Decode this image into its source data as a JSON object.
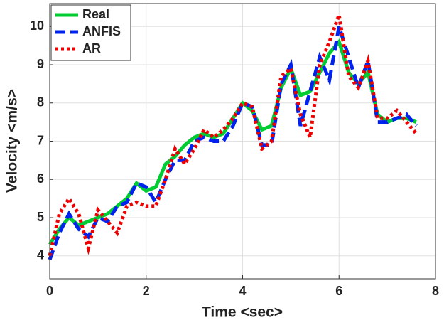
{
  "chart_data": {
    "type": "line",
    "x_label": "Time <sec>",
    "y_label": "Velocity <m/s>",
    "x": [
      0,
      0.2,
      0.4,
      0.6,
      0.8,
      1.0,
      1.2,
      1.4,
      1.6,
      1.8,
      2.0,
      2.2,
      2.4,
      2.6,
      2.8,
      3.0,
      3.2,
      3.4,
      3.6,
      3.8,
      4.0,
      4.2,
      4.4,
      4.6,
      4.8,
      5.0,
      5.2,
      5.4,
      5.6,
      5.8,
      6.0,
      6.2,
      6.4,
      6.6,
      6.8,
      7.0,
      7.2,
      7.4,
      7.6
    ],
    "series": [
      {
        "name": "Real",
        "color": "#00cc33",
        "linestyle": "solid",
        "values": [
          4.3,
          4.7,
          5.0,
          4.8,
          4.9,
          5.0,
          5.1,
          5.3,
          5.5,
          5.9,
          5.7,
          5.8,
          6.4,
          6.6,
          6.9,
          7.1,
          7.2,
          7.1,
          7.2,
          7.6,
          8.0,
          7.8,
          7.3,
          7.4,
          8.4,
          8.9,
          8.2,
          8.3,
          8.8,
          9.3,
          9.6,
          8.8,
          8.5,
          8.8,
          7.7,
          7.5,
          7.6,
          7.6,
          7.5
        ]
      },
      {
        "name": "ANFIS",
        "color": "#0022ee",
        "linestyle": "dashed",
        "values": [
          3.9,
          4.6,
          5.1,
          4.7,
          4.5,
          5.0,
          4.9,
          5.3,
          5.4,
          5.9,
          5.8,
          5.4,
          6.0,
          6.5,
          6.5,
          7.0,
          7.1,
          7.0,
          7.0,
          7.4,
          8.0,
          7.9,
          6.9,
          6.9,
          8.5,
          9.0,
          7.4,
          8.3,
          9.2,
          8.6,
          10.0,
          9.2,
          8.4,
          9.1,
          7.5,
          7.5,
          7.6,
          7.7,
          7.4
        ]
      },
      {
        "name": "AR",
        "color": "#ee0000",
        "linestyle": "dotted",
        "values": [
          4.0,
          5.1,
          5.5,
          5.1,
          4.2,
          5.2,
          4.9,
          4.6,
          5.3,
          5.4,
          5.3,
          5.3,
          6.0,
          6.8,
          6.4,
          6.8,
          7.3,
          7.1,
          7.3,
          7.6,
          8.0,
          7.9,
          6.8,
          7.0,
          8.7,
          8.9,
          7.7,
          7.1,
          9.0,
          9.6,
          10.3,
          8.7,
          8.4,
          9.1,
          7.6,
          7.6,
          7.8,
          7.5,
          7.2
        ]
      }
    ],
    "xlim": [
      0,
      8
    ],
    "xticks": [
      0,
      2,
      4,
      6,
      8
    ],
    "ylim": [
      3.4,
      10.6
    ],
    "yticks": [
      4,
      5,
      6,
      7,
      8,
      9,
      10
    ],
    "grid": true,
    "legend": "top-left"
  }
}
